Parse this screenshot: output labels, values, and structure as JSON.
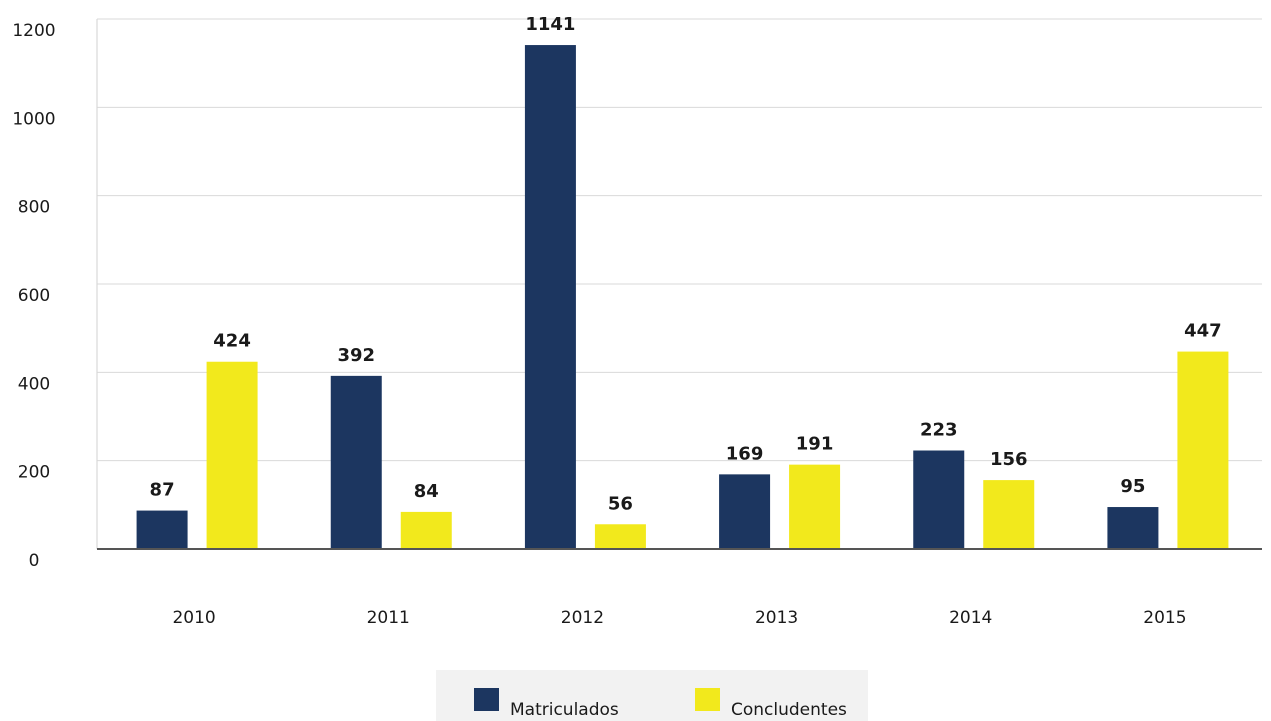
{
  "chart_data": {
    "type": "bar",
    "categories": [
      "2010",
      "2011",
      "2012",
      "2013",
      "2014",
      "2015"
    ],
    "series": [
      {
        "name": "Matriculados",
        "color": "#1c3660",
        "values": [
          87,
          392,
          1141,
          169,
          223,
          95
        ]
      },
      {
        "name": "Concludentes",
        "color": "#f2e91c",
        "values": [
          424,
          84,
          56,
          191,
          156,
          447
        ]
      }
    ],
    "ylim": [
      0,
      1200
    ],
    "yticks": [
      0,
      200,
      400,
      600,
      800,
      1000,
      1200
    ],
    "grid": true,
    "legend": "bottom"
  }
}
